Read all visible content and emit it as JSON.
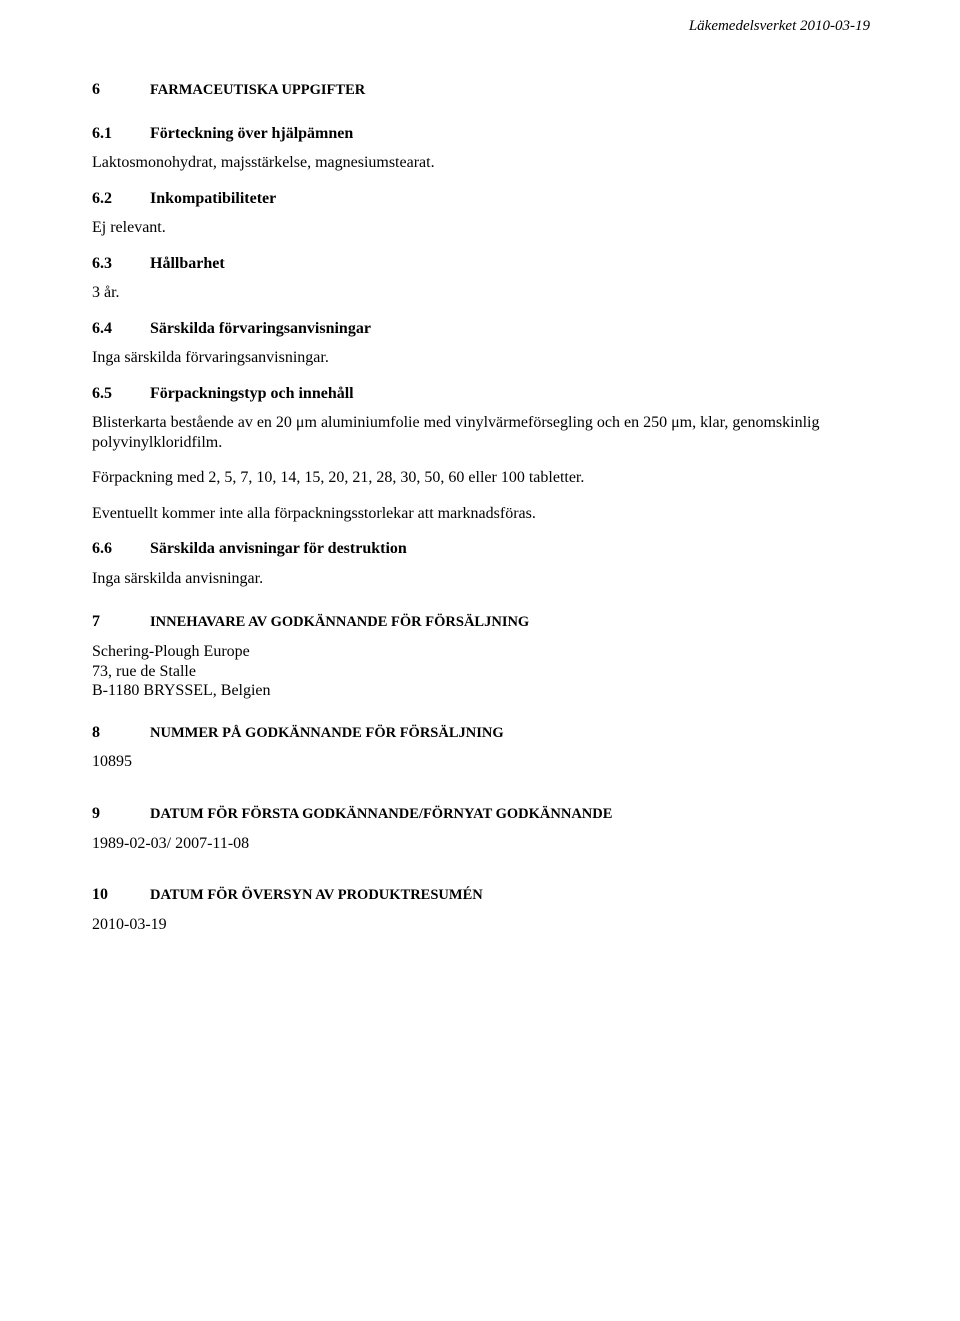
{
  "header": {
    "agency_date": "Läkemedelsverket 2010-03-19"
  },
  "s6": {
    "num": "6",
    "title": "FARMACEUTISKA UPPGIFTER"
  },
  "s6_1": {
    "num": "6.1",
    "title": "Förteckning över hjälpämnen",
    "text": "Laktosmonohydrat, majsstärkelse, magnesiumstearat."
  },
  "s6_2": {
    "num": "6.2",
    "title": "Inkompatibiliteter",
    "text": "Ej relevant."
  },
  "s6_3": {
    "num": "6.3",
    "title": "Hållbarhet",
    "text": "3 år."
  },
  "s6_4": {
    "num": "6.4",
    "title": "Särskilda förvaringsanvisningar",
    "text": "Inga särskilda förvaringsanvisningar."
  },
  "s6_5": {
    "num": "6.5",
    "title": "Förpackningstyp och innehåll",
    "p1": "Blisterkarta bestående av en 20 μm aluminiumfolie med vinylvärmeförsegling och en 250 μm, klar, genomskinlig polyvinylkloridfilm.",
    "p2": "Förpackning med 2, 5, 7, 10, 14, 15, 20, 21, 28, 30, 50, 60 eller 100 tabletter.",
    "p3": "Eventuellt kommer inte alla förpackningsstorlekar att marknadsföras."
  },
  "s6_6": {
    "num": "6.6",
    "title": "Särskilda anvisningar för destruktion",
    "text": "Inga särskilda anvisningar."
  },
  "s7": {
    "num": "7",
    "title": "INNEHAVARE AV GODKÄNNANDE FÖR FÖRSÄLJNING",
    "line1": "Schering-Plough Europe",
    "line2": "73, rue de Stalle",
    "line3": "B-1180 BRYSSEL, Belgien"
  },
  "s8": {
    "num": "8",
    "title": "NUMMER PÅ GODKÄNNANDE FÖR FÖRSÄLJNING",
    "text": "10895"
  },
  "s9": {
    "num": "9",
    "title": "DATUM FÖR FÖRSTA GODKÄNNANDE/FÖRNYAT GODKÄNNANDE",
    "text": "1989-02-03/ 2007-11-08"
  },
  "s10": {
    "num": "10",
    "title": "DATUM FÖR ÖVERSYN AV PRODUKTRESUMÉN",
    "text": "2010-03-19"
  }
}
